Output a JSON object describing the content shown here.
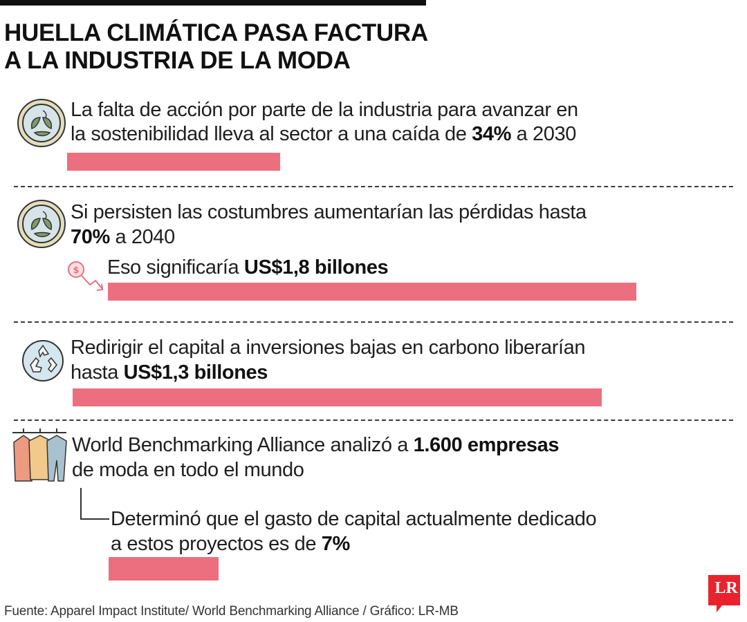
{
  "title": {
    "line1": "HUELLA CLIMÁTICA PASA FACTURA",
    "line2": "A LA INDUSTRIA DE LA MODA"
  },
  "items": [
    {
      "icon": "leaf-circle-icon",
      "line1": "La falta de acción por parte de la industria para avanzar en",
      "line2_pre": "la sostenibilidad lleva al sector a una caída de ",
      "line2_bold": "34%",
      "line2_post": " a 2030",
      "bar_value": 34
    },
    {
      "icon": "leaf-circle-icon",
      "line1": "Si persisten las costumbres aumentarían las pérdidas hasta",
      "line2_bold": "70%",
      "line2_post": " a 2040",
      "sub": {
        "icon": "money-loss-icon",
        "pre": "Eso significaría ",
        "bold": "US$1,8 billones"
      },
      "bar_value": 1.8
    },
    {
      "icon": "recycle-icon",
      "line1": "Redirigir el capital a inversiones bajas en carbono liberarían",
      "line2_pre": "hasta ",
      "line2_bold": "US$1,3 billones",
      "bar_value": 1.3
    },
    {
      "icon": "clothes-rack-icon",
      "line1_pre": "World Benchmarking Alliance analizó a ",
      "line1_bold": "1.600 empresas",
      "line2": "de moda en todo el mundo",
      "sub": {
        "line1": "Determinó que el gasto de capital actualmente dedicado",
        "line2_pre": "a estos proyectos es de ",
        "line2_bold": "7%"
      },
      "bar_value": 7
    }
  ],
  "source": "Fuente: Apparel Impact Institute/ World Benchmarking Alliance / Gráfico: LR-MB",
  "logo": "LR",
  "colors": {
    "bar": "#ec6f80",
    "text": "#1f1f1f",
    "logo": "#e8232d"
  }
}
